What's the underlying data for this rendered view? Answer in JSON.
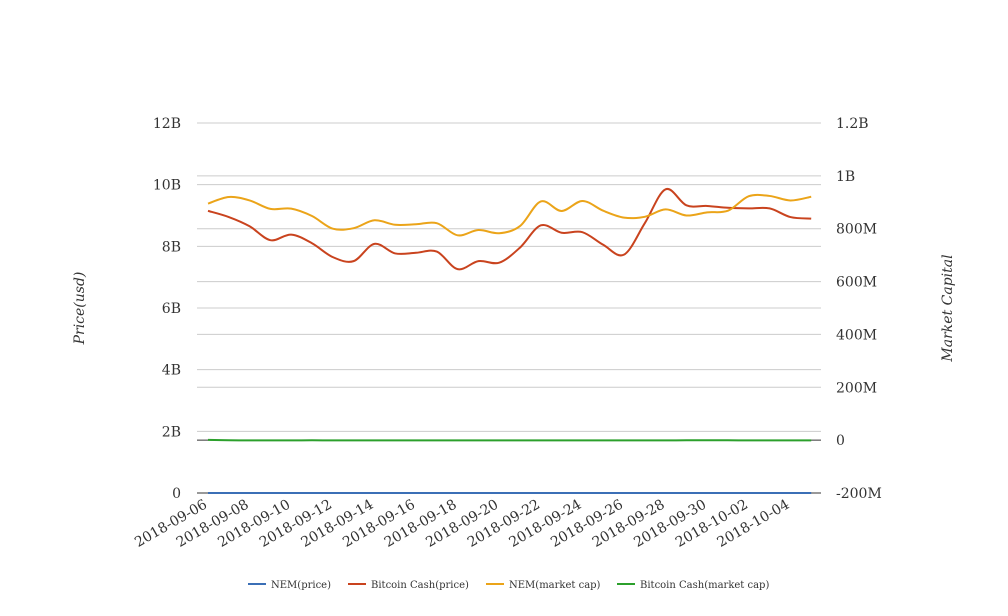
{
  "chart_data": {
    "type": "line",
    "title": "",
    "xlabel": "",
    "ylabel_left": "Price(usd)",
    "ylabel_right": "Market Capital",
    "grid": true,
    "legend_position": "bottom",
    "x_tick_labels": [
      "2018-09-06",
      "2018-09-08",
      "2018-09-10",
      "2018-09-12",
      "2018-09-14",
      "2018-09-16",
      "2018-09-18",
      "2018-09-20",
      "2018-09-22",
      "2018-09-24",
      "2018-09-26",
      "2018-09-28",
      "2018-09-30",
      "2018-10-02",
      "2018-10-04"
    ],
    "y_left": {
      "min": 0,
      "max": 12000000000,
      "ticks": [
        0,
        2000000000,
        4000000000,
        6000000000,
        8000000000,
        10000000000,
        12000000000
      ],
      "tick_labels": [
        "0",
        "2B",
        "4B",
        "6B",
        "8B",
        "10B",
        "12B"
      ]
    },
    "y_right": {
      "min": -200000000,
      "max": 1200000000,
      "ticks": [
        -200000000,
        0,
        200000000,
        400000000,
        600000000,
        800000000,
        1000000000,
        1200000000
      ],
      "tick_labels": [
        "-200M",
        "0",
        "200M",
        "400M",
        "600M",
        "800M",
        "1B",
        "1.2B"
      ]
    },
    "x": [
      "2018-09-06",
      "2018-09-07",
      "2018-09-08",
      "2018-09-09",
      "2018-09-10",
      "2018-09-11",
      "2018-09-12",
      "2018-09-13",
      "2018-09-14",
      "2018-09-15",
      "2018-09-16",
      "2018-09-17",
      "2018-09-18",
      "2018-09-19",
      "2018-09-20",
      "2018-09-21",
      "2018-09-22",
      "2018-09-23",
      "2018-09-24",
      "2018-09-25",
      "2018-09-26",
      "2018-09-27",
      "2018-09-28",
      "2018-09-29",
      "2018-09-30",
      "2018-10-01",
      "2018-10-02",
      "2018-10-03",
      "2018-10-04",
      "2018-10-05"
    ],
    "series": [
      {
        "name": "NEM(price)",
        "axis": "left",
        "color": "#3b6fb6",
        "values": [
          0.108,
          0.105,
          0.103,
          0.1,
          0.102,
          0.1,
          0.095,
          0.094,
          0.098,
          0.096,
          0.096,
          0.096,
          0.092,
          0.094,
          0.093,
          0.096,
          0.102,
          0.099,
          0.102,
          0.099,
          0.096,
          0.096,
          0.1,
          0.097,
          0.098,
          0.098,
          0.105,
          0.105,
          0.103,
          0.105
        ]
      },
      {
        "name": "Bitcoin Cash(price)",
        "axis": "left",
        "color": "#c9431e",
        "values": [
          9150000000,
          8950000000,
          8650000000,
          8200000000,
          8380000000,
          8100000000,
          7650000000,
          7520000000,
          8080000000,
          7770000000,
          7790000000,
          7830000000,
          7260000000,
          7520000000,
          7470000000,
          7960000000,
          8680000000,
          8440000000,
          8460000000,
          8050000000,
          7730000000,
          8750000000,
          9850000000,
          9330000000,
          9310000000,
          9250000000,
          9230000000,
          9230000000,
          8950000000,
          8900000000
        ]
      },
      {
        "name": "NEM(market cap)",
        "axis": "right",
        "color": "#eba419",
        "values": [
          895000000,
          920000000,
          907000000,
          875000000,
          876000000,
          848000000,
          800000000,
          802000000,
          832000000,
          815000000,
          817000000,
          821000000,
          775000000,
          795000000,
          783000000,
          810000000,
          903000000,
          867000000,
          905000000,
          868000000,
          842000000,
          845000000,
          873000000,
          850000000,
          862000000,
          868000000,
          923000000,
          924000000,
          907000000,
          921000000
        ]
      },
      {
        "name": "Bitcoin Cash(market cap)",
        "axis": "right",
        "color": "#2ca02c",
        "values": [
          1000000,
          -500000,
          -1000000,
          -1000000,
          -1000000,
          -500000,
          -1000000,
          -1000000,
          -1000000,
          -1000000,
          -1000000,
          -1000000,
          -1000000,
          -1000000,
          -1000000,
          -1000000,
          -1000000,
          -1000000,
          -1000000,
          -1000000,
          -1000000,
          -1000000,
          -1000000,
          -500000,
          -500000,
          -500000,
          -1000000,
          -1000000,
          -1000000,
          -1000000
        ]
      }
    ]
  }
}
